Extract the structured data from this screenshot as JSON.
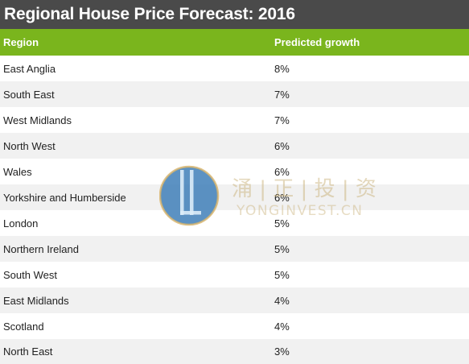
{
  "header": {
    "title": "Regional House Price Forecast: 2016"
  },
  "table": {
    "columns": [
      "Region",
      "Predicted growth"
    ],
    "rows": [
      {
        "region": "East Anglia",
        "growth": "8%"
      },
      {
        "region": "South East",
        "growth": "7%"
      },
      {
        "region": "West Midlands",
        "growth": "7%"
      },
      {
        "region": "North West",
        "growth": "6%"
      },
      {
        "region": "Wales",
        "growth": "6%"
      },
      {
        "region": "Yorkshire and Humberside",
        "growth": "6%"
      },
      {
        "region": "London",
        "growth": "5%"
      },
      {
        "region": "Northern Ireland",
        "growth": "5%"
      },
      {
        "region": "South West",
        "growth": "5%"
      },
      {
        "region": "East Midlands",
        "growth": "4%"
      },
      {
        "region": "Scotland",
        "growth": "4%"
      },
      {
        "region": "North East",
        "growth": "3%"
      }
    ]
  },
  "watermark": {
    "chinese": "涌 | 正 | 投 | 资",
    "latin": "YONGINVEST.CN"
  },
  "colors": {
    "title_bg": "#4a4a4a",
    "header_bg": "#7ab51d",
    "row_alt_bg": "#f1f1f1"
  }
}
